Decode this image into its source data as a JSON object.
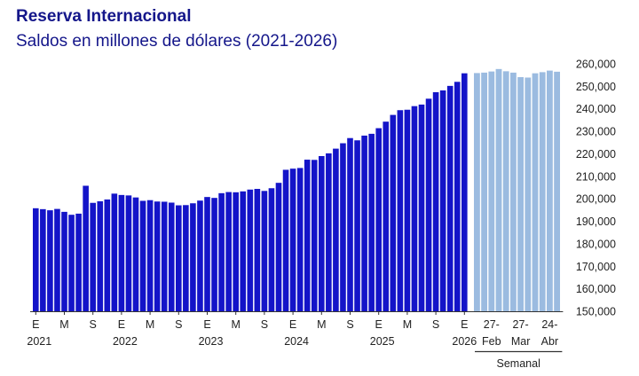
{
  "chart_data": {
    "type": "bar",
    "title": "Reserva Internacional",
    "subtitle": "Saldos en millones de dólares (2021-2026)",
    "ylim": [
      150000,
      260000
    ],
    "yticks": [
      "150,000",
      "160,000",
      "170,000",
      "180,000",
      "190,000",
      "200,000",
      "210,000",
      "220,000",
      "230,000",
      "240,000",
      "250,000",
      "260,000"
    ],
    "ytick_values": [
      150000,
      160000,
      170000,
      180000,
      190000,
      200000,
      210000,
      220000,
      230000,
      240000,
      250000,
      260000
    ],
    "colors": {
      "monthly": "#1414c8",
      "weekly": "#9bbbe0"
    },
    "series": [
      {
        "values": [
          195800,
          195400,
          194900,
          195500,
          194200,
          192900,
          193400,
          205800,
          198200,
          198900,
          199700,
          202300,
          201700,
          201500,
          200600,
          199100,
          199400,
          198800,
          198700,
          198300,
          197100,
          197200,
          198000,
          199200,
          200800,
          200400,
          202500,
          203000,
          202900,
          203300,
          204100,
          204400,
          203500,
          204700,
          207100,
          212900,
          213400,
          213700,
          217400,
          217300,
          219000,
          220200,
          222300,
          224700,
          227000,
          226000,
          228100,
          228900,
          231400,
          234300,
          237300,
          239400,
          239600,
          241200,
          241900,
          244500,
          247400,
          248200,
          250200,
          252000,
          255800
        ]
      },
      {
        "values": [
          255900,
          256100,
          256600,
          257700,
          256700,
          256100,
          254100,
          253900,
          255800,
          256300,
          257000,
          256500
        ]
      }
    ],
    "x_month_labels": [
      {
        "i": 0,
        "label": "E"
      },
      {
        "i": 4,
        "label": "M"
      },
      {
        "i": 8,
        "label": "S"
      },
      {
        "i": 12,
        "label": "E"
      },
      {
        "i": 16,
        "label": "M"
      },
      {
        "i": 20,
        "label": "S"
      },
      {
        "i": 24,
        "label": "E"
      },
      {
        "i": 28,
        "label": "M"
      },
      {
        "i": 32,
        "label": "S"
      },
      {
        "i": 36,
        "label": "E"
      },
      {
        "i": 40,
        "label": "M"
      },
      {
        "i": 44,
        "label": "S"
      },
      {
        "i": 48,
        "label": "E"
      },
      {
        "i": 52,
        "label": "M"
      },
      {
        "i": 56,
        "label": "S"
      },
      {
        "i": 60,
        "label": "E"
      }
    ],
    "x_year_labels": [
      {
        "i": 0,
        "label": "2021"
      },
      {
        "i": 12,
        "label": "2022"
      },
      {
        "i": 24,
        "label": "2023"
      },
      {
        "i": 36,
        "label": "2024"
      },
      {
        "i": 48,
        "label": "2025"
      },
      {
        "i": 60,
        "label": "2026"
      }
    ],
    "x_weekly_labels": [
      {
        "i": 2,
        "top": "27-",
        "bottom": "Feb"
      },
      {
        "i": 6,
        "top": "27-",
        "bottom": "Mar"
      },
      {
        "i": 10,
        "top": "24-",
        "bottom": "Abr"
      }
    ],
    "weekly_group_label": "Semanal"
  }
}
